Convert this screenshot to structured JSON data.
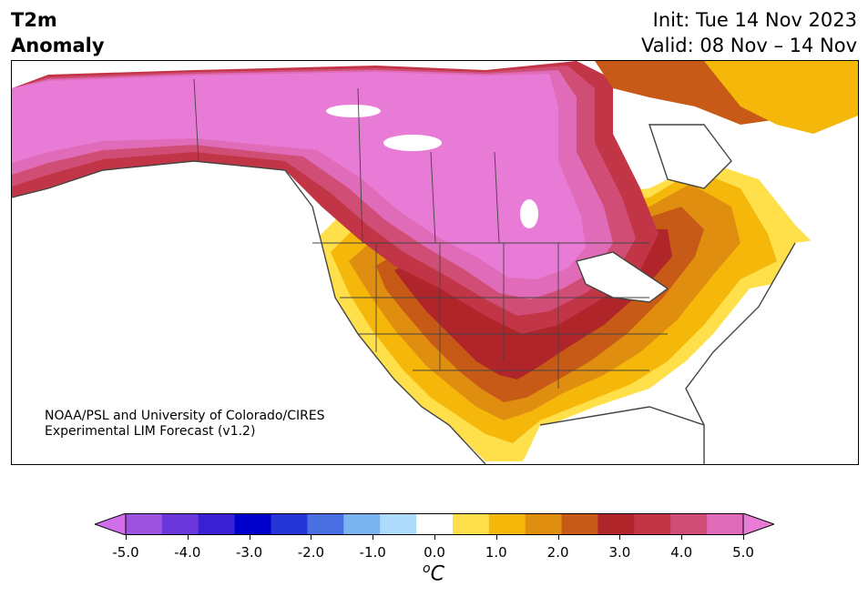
{
  "header": {
    "title_line1": "T2m",
    "title_line2": "Anomaly",
    "init": "Init: Tue 14 Nov 2023",
    "valid": "Valid: 08 Nov – 14 Nov"
  },
  "credit": {
    "line1": "NOAA/PSL and University of Colorado/CIRES",
    "line2": "Experimental LIM Forecast (v1.2)"
  },
  "colorbar": {
    "colors": [
      "#d16ee8",
      "#9e52e0",
      "#6a37da",
      "#3b1fd3",
      "#0000cd",
      "#2535d6",
      "#4a6fe3",
      "#7ab3f0",
      "#acdcfa",
      "#ffffff",
      "#ffe04a",
      "#f5b70a",
      "#e08e10",
      "#c85a17",
      "#b0252a",
      "#c23546",
      "#d04e75",
      "#e06bb8",
      "#e87bd6"
    ],
    "ticks": [
      "-5.0",
      "-4.0",
      "-3.0",
      "-2.0",
      "-1.0",
      "0.0",
      "1.0",
      "2.0",
      "3.0",
      "4.0",
      "5.0"
    ],
    "units_base": "o",
    "units_label": "C"
  }
}
